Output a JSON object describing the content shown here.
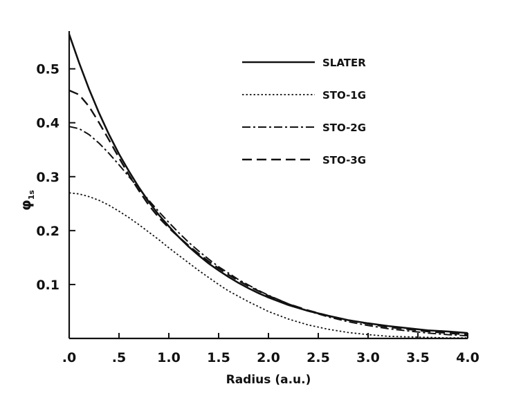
{
  "chart_data": {
    "type": "line",
    "title": "",
    "xlabel": "Radius (a.u.)",
    "ylabel": "φ1s",
    "ylabel_main": "φ",
    "ylabel_sub": "1s",
    "xlim": [
      0,
      4.0
    ],
    "ylim": [
      0,
      0.57
    ],
    "x_ticks": [
      0,
      0.5,
      1.0,
      1.5,
      2.0,
      2.5,
      3.0,
      3.5,
      4.0
    ],
    "x_tick_labels": [
      ".0",
      ".5",
      "1.0",
      "1.5",
      "2.0",
      "2.5",
      "3.0",
      "3.5",
      "4.0"
    ],
    "y_ticks": [
      0.1,
      0.2,
      0.3,
      0.4,
      0.5
    ],
    "y_tick_labels": [
      "0.1",
      "0.2",
      "0.3",
      "0.4",
      "0.5"
    ],
    "grid": false,
    "legend_position": "top-right",
    "x": [
      0,
      0.1,
      0.2,
      0.3,
      0.4,
      0.5,
      0.6,
      0.7,
      0.8,
      0.9,
      1.0,
      1.1,
      1.2,
      1.3,
      1.4,
      1.5,
      1.6,
      1.7,
      1.8,
      1.9,
      2.0,
      2.2,
      2.4,
      2.6,
      2.8,
      3.0,
      3.2,
      3.4,
      3.6,
      3.8,
      4.0
    ],
    "series": [
      {
        "name": "SLATER",
        "style": "solid",
        "values": [
          0.564,
          0.511,
          0.462,
          0.418,
          0.378,
          0.342,
          0.31,
          0.28,
          0.253,
          0.229,
          0.208,
          0.188,
          0.17,
          0.154,
          0.139,
          0.126,
          0.114,
          0.103,
          0.093,
          0.084,
          0.076,
          0.062,
          0.051,
          0.042,
          0.034,
          0.028,
          0.023,
          0.019,
          0.015,
          0.013,
          0.01
        ]
      },
      {
        "name": "STO-1G",
        "style": "dotted",
        "values": [
          0.27,
          0.268,
          0.263,
          0.256,
          0.247,
          0.236,
          0.224,
          0.211,
          0.197,
          0.183,
          0.168,
          0.154,
          0.14,
          0.126,
          0.113,
          0.1,
          0.088,
          0.078,
          0.068,
          0.059,
          0.05,
          0.036,
          0.025,
          0.017,
          0.011,
          0.007,
          0.004,
          0.003,
          0.002,
          0.001,
          0.001
        ]
      },
      {
        "name": "STO-2G",
        "style": "dashdot",
        "values": [
          0.393,
          0.389,
          0.378,
          0.362,
          0.343,
          0.322,
          0.3,
          0.278,
          0.256,
          0.235,
          0.215,
          0.196,
          0.178,
          0.162,
          0.147,
          0.133,
          0.121,
          0.109,
          0.099,
          0.089,
          0.08,
          0.064,
          0.051,
          0.04,
          0.031,
          0.024,
          0.018,
          0.014,
          0.01,
          0.007,
          0.005
        ]
      },
      {
        "name": "STO-3G",
        "style": "dashed",
        "values": [
          0.46,
          0.452,
          0.43,
          0.4,
          0.368,
          0.335,
          0.303,
          0.274,
          0.247,
          0.224,
          0.205,
          0.188,
          0.172,
          0.157,
          0.143,
          0.13,
          0.118,
          0.107,
          0.097,
          0.088,
          0.079,
          0.064,
          0.052,
          0.042,
          0.034,
          0.027,
          0.021,
          0.017,
          0.013,
          0.01,
          0.007
        ]
      }
    ]
  }
}
